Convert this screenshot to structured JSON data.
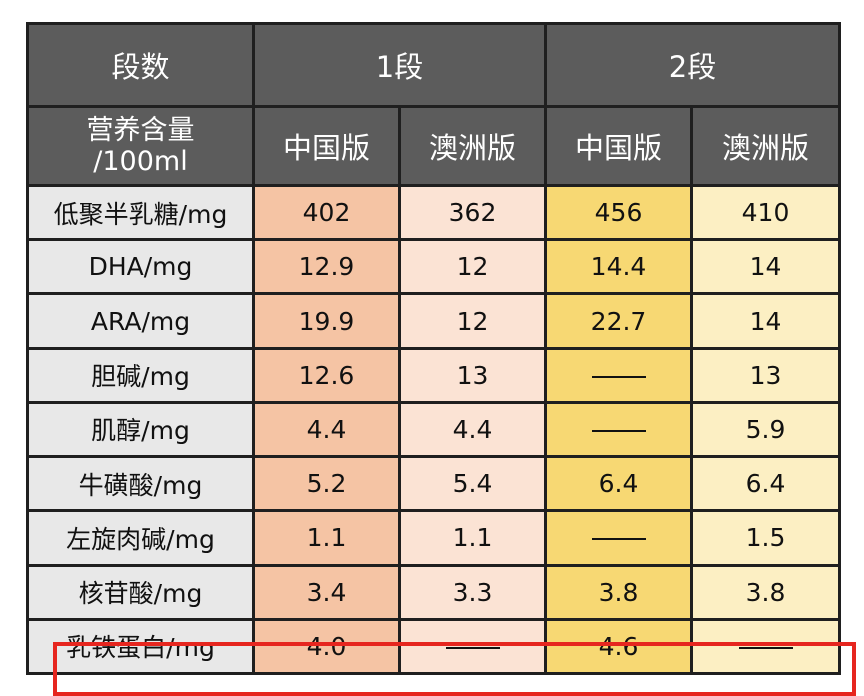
{
  "table": {
    "header_row1": {
      "stage_label": "段数",
      "stage1": "1段",
      "stage2": "2段"
    },
    "header_row2": {
      "nutrient_label_line1": "营养含量",
      "nutrient_label_line2": "/100ml",
      "versions": [
        "中国版",
        "澳洲版",
        "中国版",
        "澳洲版"
      ]
    },
    "rows": [
      {
        "label": "低聚半乳糖/mg",
        "values": [
          "402",
          "362",
          "456",
          "410"
        ]
      },
      {
        "label": "DHA/mg",
        "values": [
          "12.9",
          "12",
          "14.4",
          "14"
        ]
      },
      {
        "label": "ARA/mg",
        "values": [
          "19.9",
          "12",
          "22.7",
          "14"
        ]
      },
      {
        "label": "胆碱/mg",
        "values": [
          "12.6",
          "13",
          "",
          "13"
        ]
      },
      {
        "label": "肌醇/mg",
        "values": [
          "4.4",
          "4.4",
          "",
          "5.9"
        ]
      },
      {
        "label": "牛磺酸/mg",
        "values": [
          "5.2",
          "5.4",
          "6.4",
          "6.4"
        ]
      },
      {
        "label": "左旋肉碱/mg",
        "values": [
          "1.1",
          "1.1",
          "",
          "1.5"
        ]
      },
      {
        "label": "核苷酸/mg",
        "values": [
          "3.4",
          "3.3",
          "3.8",
          "3.8"
        ]
      },
      {
        "label": "乳铁蛋白/mg",
        "values": [
          "4.0",
          "",
          "4.6",
          ""
        ]
      }
    ],
    "highlighted_row_label": "乳铁蛋白/mg"
  },
  "colors": {
    "header_bg": "#5c5c5c",
    "label_bg": "#e8e8e8",
    "stage1_china": "#f5c4a4",
    "stage1_australia": "#fbe3d4",
    "stage2_china": "#f7d873",
    "stage2_australia": "#fcefc3",
    "highlight_border": "#e6261f"
  }
}
